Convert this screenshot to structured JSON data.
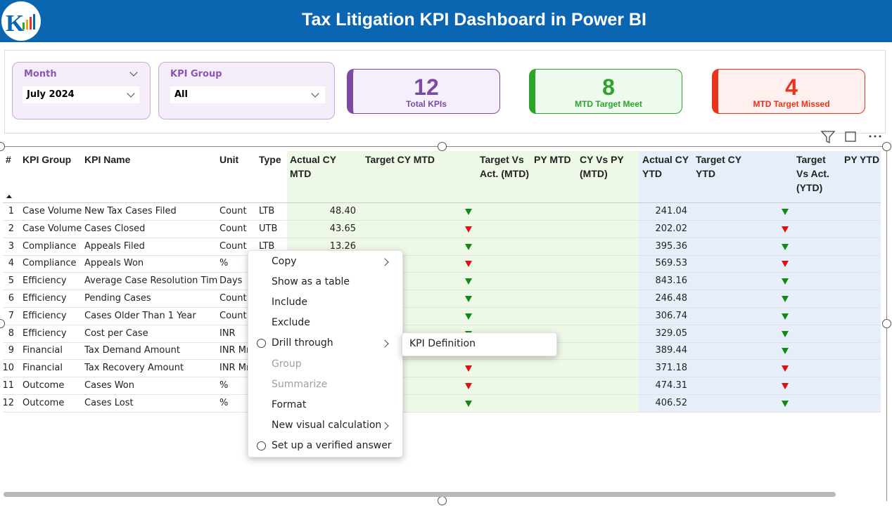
{
  "header": {
    "title": "Tax Litigation KPI Dashboard in Power BI"
  },
  "slicers": [
    {
      "label": "Month",
      "value": "July 2024"
    },
    {
      "label": "KPI Group",
      "value": "All"
    }
  ],
  "cards": [
    {
      "value": "12",
      "label": "Total KPIs",
      "color": "#7b4aa3"
    },
    {
      "value": "8",
      "label": "MTD Target Meet",
      "color": "#2aa52a"
    },
    {
      "value": "4",
      "label": "MTD Target Missed",
      "color": "#e8341c"
    }
  ],
  "table": {
    "columns": [
      "#",
      "KPI Group",
      "KPI Name",
      "Unit",
      "Type",
      "Actual CY MTD",
      "Target CY MTD",
      "Target Vs Act. (MTD)",
      "PY MTD",
      "CY Vs PY (MTD)",
      "Actual CY YTD",
      "Target CY YTD",
      "Target Vs Act. (YTD)",
      "PY YTD"
    ],
    "rows": [
      {
        "no": "1",
        "kpi_group": "Case Volume",
        "kpi_name": "New Tax Cases Filed",
        "unit": "Count",
        "type": "LTB",
        "actual_cy_mtd": "48.40",
        "mtd_status": "up",
        "actual_cy_ytd": "241.04",
        "ytd_status": "up"
      },
      {
        "no": "2",
        "kpi_group": "Case Volume",
        "kpi_name": "Cases Closed",
        "unit": "Count",
        "type": "UTB",
        "actual_cy_mtd": "43.65",
        "mtd_status": "down",
        "actual_cy_ytd": "202.02",
        "ytd_status": "down"
      },
      {
        "no": "3",
        "kpi_group": "Compliance",
        "kpi_name": "Appeals Filed",
        "unit": "Count",
        "type": "LTB",
        "actual_cy_mtd": "13.26",
        "mtd_status": "up",
        "actual_cy_ytd": "395.36",
        "ytd_status": "up"
      },
      {
        "no": "4",
        "kpi_group": "Compliance",
        "kpi_name": "Appeals Won",
        "unit": "%",
        "type": null,
        "actual_cy_mtd": null,
        "mtd_status": "down",
        "actual_cy_ytd": "569.53",
        "ytd_status": "down"
      },
      {
        "no": "5",
        "kpi_group": "Efficiency",
        "kpi_name": "Average Case Resolution Time",
        "unit": "Days",
        "type": null,
        "actual_cy_mtd": null,
        "mtd_status": "up",
        "actual_cy_ytd": "843.16",
        "ytd_status": "up"
      },
      {
        "no": "6",
        "kpi_group": "Efficiency",
        "kpi_name": "Pending Cases",
        "unit": "Count",
        "type": null,
        "actual_cy_mtd": null,
        "mtd_status": "up",
        "actual_cy_ytd": "246.48",
        "ytd_status": "up"
      },
      {
        "no": "7",
        "kpi_group": "Efficiency",
        "kpi_name": "Cases Older Than 1 Year",
        "unit": "Count",
        "type": null,
        "actual_cy_mtd": null,
        "mtd_status": "up",
        "actual_cy_ytd": "306.74",
        "ytd_status": "up"
      },
      {
        "no": "8",
        "kpi_group": "Efficiency",
        "kpi_name": "Cost per Case",
        "unit": "INR",
        "type": null,
        "actual_cy_mtd": null,
        "mtd_status": "up",
        "actual_cy_ytd": "329.05",
        "ytd_status": "up"
      },
      {
        "no": "9",
        "kpi_group": "Financial",
        "kpi_name": "Tax Demand Amount",
        "unit": "INR Mn",
        "type": null,
        "actual_cy_mtd": null,
        "mtd_status": null,
        "actual_cy_ytd": "389.44",
        "ytd_status": "up"
      },
      {
        "no": "10",
        "kpi_group": "Financial",
        "kpi_name": "Tax Recovery Amount",
        "unit": "INR Mn",
        "type": null,
        "actual_cy_mtd": null,
        "mtd_status": "down",
        "actual_cy_ytd": "371.18",
        "ytd_status": "down"
      },
      {
        "no": "11",
        "kpi_group": "Outcome",
        "kpi_name": "Cases Won",
        "unit": "%",
        "type": null,
        "actual_cy_mtd": null,
        "mtd_status": "down",
        "actual_cy_ytd": "474.31",
        "ytd_status": "down"
      },
      {
        "no": "12",
        "kpi_group": "Outcome",
        "kpi_name": "Cases Lost",
        "unit": "%",
        "type": null,
        "actual_cy_mtd": null,
        "mtd_status": "up",
        "actual_cy_ytd": "406.52",
        "ytd_status": "up"
      }
    ]
  },
  "context_menu": {
    "items": [
      {
        "label": "Copy",
        "submenu": true,
        "disabled": false
      },
      {
        "label": "Show as a table",
        "submenu": false,
        "disabled": false
      },
      {
        "label": "Include",
        "submenu": false,
        "disabled": false
      },
      {
        "label": "Exclude",
        "submenu": false,
        "disabled": false
      },
      {
        "label": "Drill through",
        "submenu": true,
        "disabled": false
      },
      {
        "label": "Group",
        "submenu": false,
        "disabled": true
      },
      {
        "label": "Summarize",
        "submenu": false,
        "disabled": true
      },
      {
        "label": "Format",
        "submenu": false,
        "disabled": false
      },
      {
        "label": "New visual calculation",
        "submenu": true,
        "disabled": false
      },
      {
        "label": "Set up a verified answer",
        "submenu": false,
        "disabled": false
      }
    ],
    "submenu": {
      "label": "KPI Definition"
    }
  }
}
